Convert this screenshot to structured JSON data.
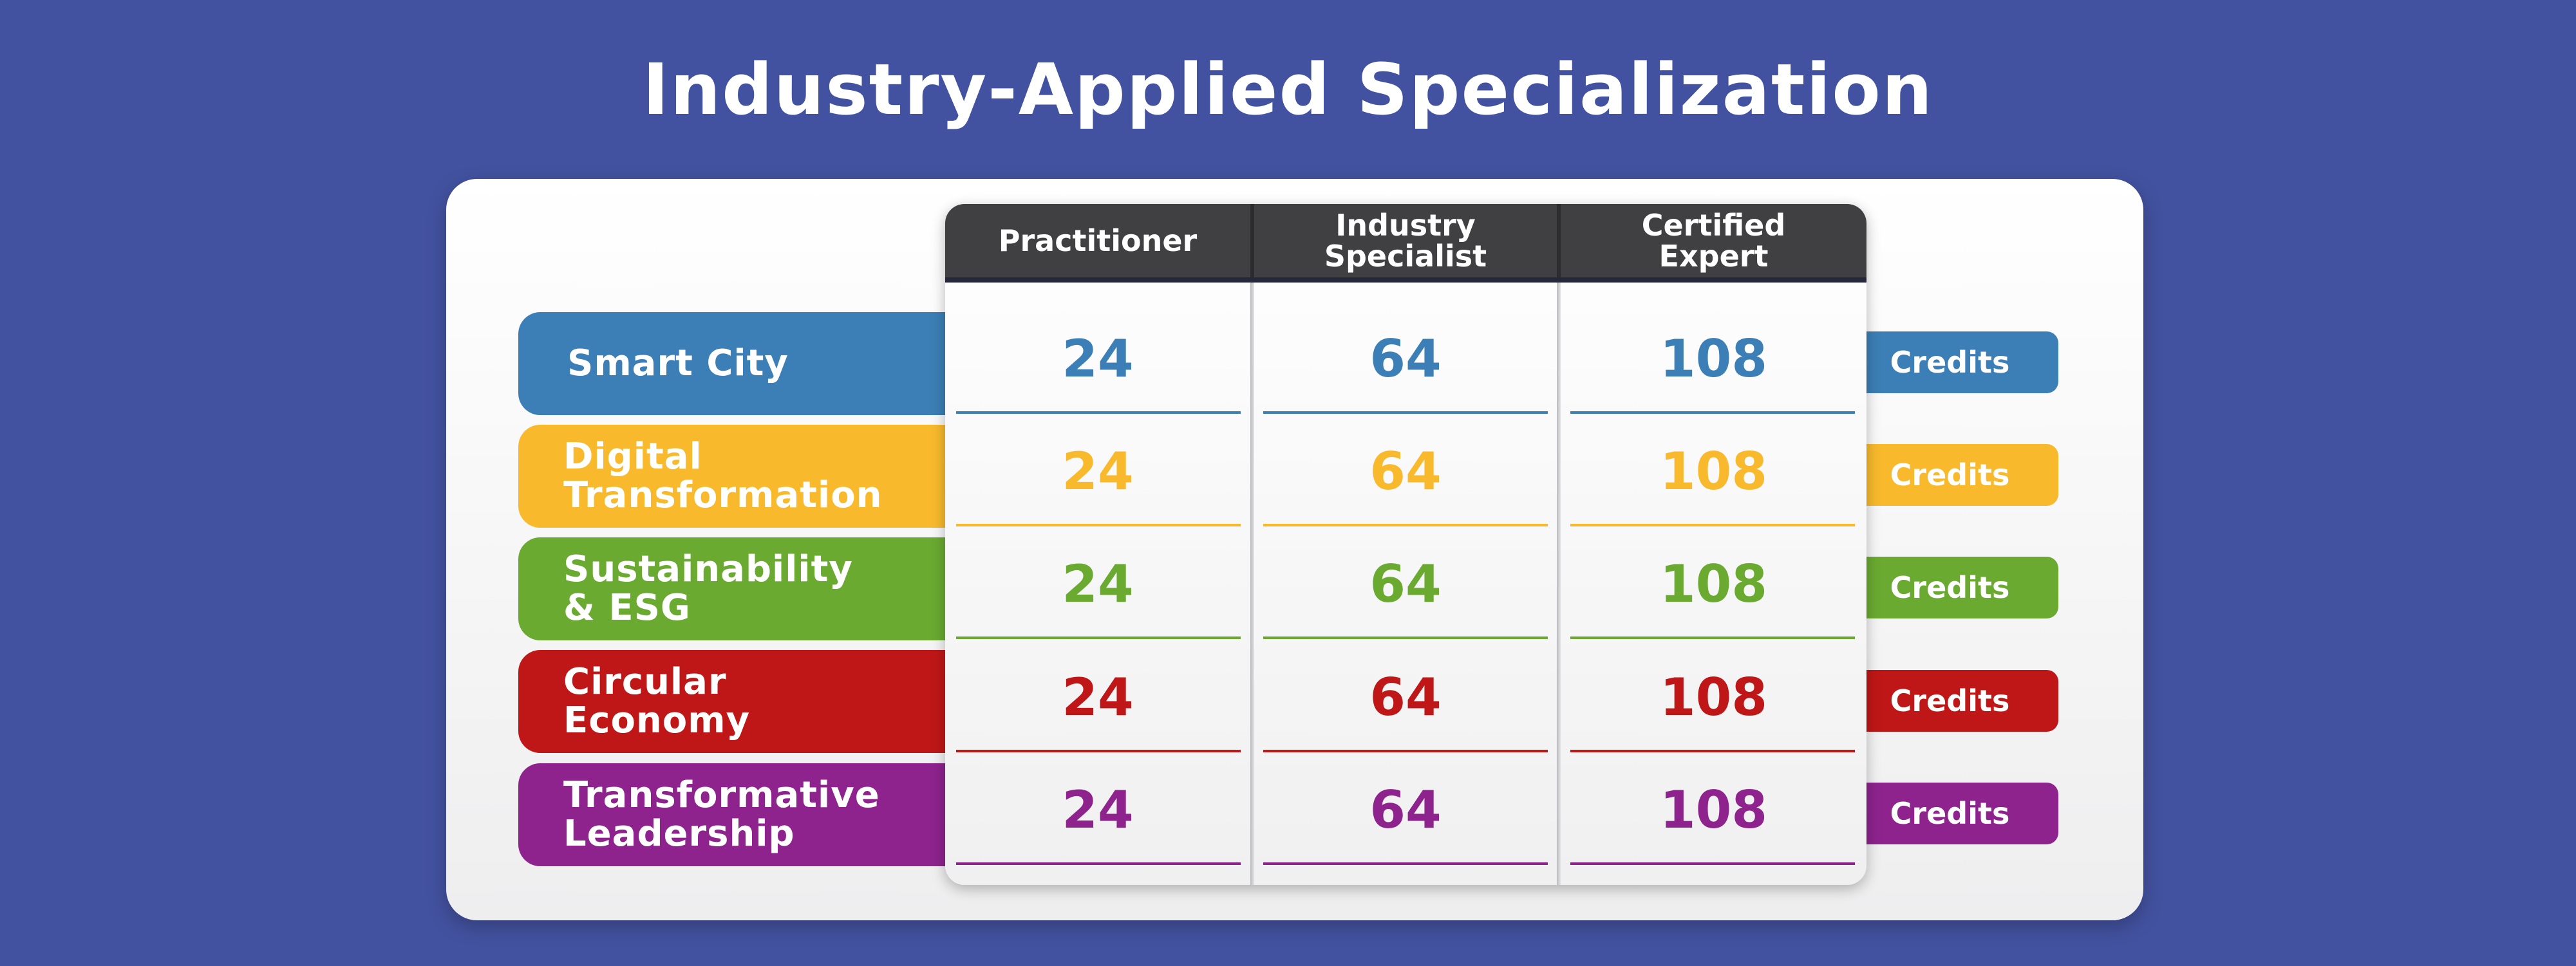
{
  "title": "Industry-Applied Specialization",
  "columns": [
    {
      "label": "Practitioner"
    },
    {
      "label": "Industry\nSpecialist"
    },
    {
      "label": "Certified\nExpert"
    }
  ],
  "rows": [
    {
      "label": "Smart City",
      "color": "#3B7FB6",
      "values": [
        "24",
        "64",
        "108"
      ],
      "credits": "Credits"
    },
    {
      "label": "Digital\nTransformation",
      "color": "#F8BA2C",
      "values": [
        "24",
        "64",
        "108"
      ],
      "credits": "Credits"
    },
    {
      "label": "Sustainability\n& ESG",
      "color": "#6AAA31",
      "values": [
        "24",
        "64",
        "108"
      ],
      "credits": "Credits"
    },
    {
      "label": "Circular\nEconomy",
      "color": "#BF1717",
      "values": [
        "24",
        "64",
        "108"
      ],
      "credits": "Credits"
    },
    {
      "label": "Transformative\nLeadership",
      "color": "#8E238E",
      "values": [
        "24",
        "64",
        "108"
      ],
      "credits": "Credits"
    }
  ]
}
